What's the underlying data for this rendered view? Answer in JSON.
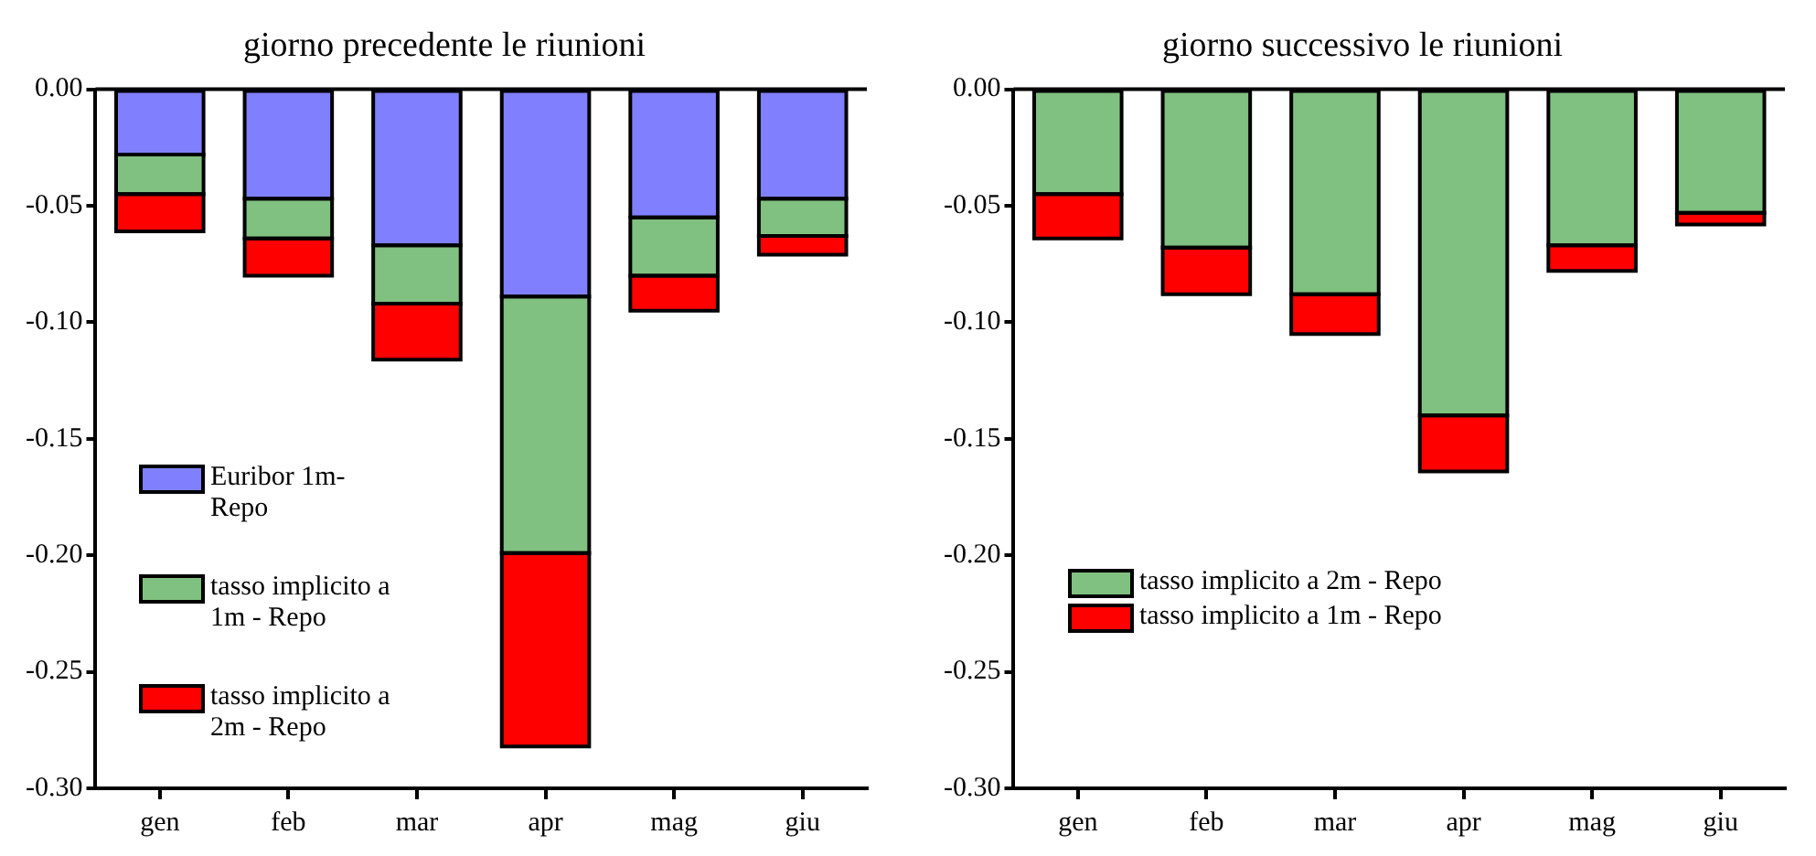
{
  "chart_data": [
    {
      "type": "bar",
      "title": "giorno precedente le riunioni",
      "stacked": true,
      "categories": [
        "gen",
        "feb",
        "mar",
        "apr",
        "mag",
        "giu"
      ],
      "ylim": [
        -0.3,
        0
      ],
      "yticks": [
        {
          "value": 0,
          "label": "0.00"
        },
        {
          "value": -0.05,
          "label": "-0.05"
        },
        {
          "value": -0.1,
          "label": "-0.10"
        },
        {
          "value": -0.15,
          "label": "-0.15"
        },
        {
          "value": -0.2,
          "label": "-0.20"
        },
        {
          "value": -0.25,
          "label": "-0.25"
        },
        {
          "value": -0.3,
          "label": "-0.30"
        }
      ],
      "grid": false,
      "legend": "bottom left",
      "series": [
        {
          "name": "Euribor 1m- Repo",
          "color": "#8080ff",
          "values": [
            -0.028,
            -0.047,
            -0.067,
            -0.089,
            -0.055,
            -0.047
          ]
        },
        {
          "name": "tasso implicito a 1m - Repo",
          "color": "#80c080",
          "values": [
            -0.017,
            -0.017,
            -0.025,
            -0.11,
            -0.025,
            -0.016
          ]
        },
        {
          "name": "tasso implicito a 2m - Repo",
          "color": "#ff0000",
          "values": [
            -0.016,
            -0.016,
            -0.024,
            -0.083,
            -0.015,
            -0.008
          ]
        }
      ]
    },
    {
      "type": "bar",
      "title": "giorno successivo le riunioni",
      "stacked": true,
      "categories": [
        "gen",
        "feb",
        "mar",
        "apr",
        "mag",
        "giu"
      ],
      "ylim": [
        -0.3,
        0
      ],
      "yticks": [
        {
          "value": 0,
          "label": "0.00"
        },
        {
          "value": -0.05,
          "label": "-0.05"
        },
        {
          "value": -0.1,
          "label": "-0.10"
        },
        {
          "value": -0.15,
          "label": "-0.15"
        },
        {
          "value": -0.2,
          "label": "-0.20"
        },
        {
          "value": -0.25,
          "label": "-0.25"
        },
        {
          "value": -0.3,
          "label": "-0.30"
        }
      ],
      "grid": false,
      "legend": "left",
      "series": [
        {
          "name": "tasso implicito a 2m - Repo",
          "color": "#80c080",
          "values": [
            -0.045,
            -0.068,
            -0.088,
            -0.14,
            -0.067,
            -0.053
          ]
        },
        {
          "name": "tasso implicito a 1m - Repo",
          "color": "#ff0000",
          "values": [
            -0.019,
            -0.02,
            -0.017,
            -0.024,
            -0.011,
            -0.005
          ]
        }
      ]
    }
  ]
}
